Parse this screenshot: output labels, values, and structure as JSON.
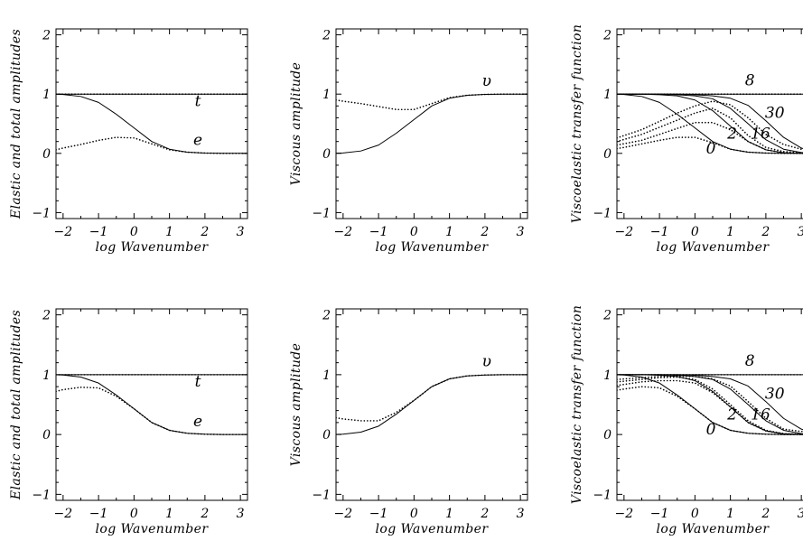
{
  "chart_data": [
    {
      "type": "line",
      "xlabel": "log Wavenumber",
      "ylabel": "Elastic and total amplitudes",
      "xlim": [
        -2.2,
        3.2
      ],
      "ylim": [
        -1.1,
        2.1
      ],
      "xticks": [
        "−2",
        "−1",
        "0",
        "1",
        "2",
        "3"
      ],
      "yticks": [
        "−1",
        "0",
        "1",
        "2"
      ],
      "series": [
        {
          "style": "dotted",
          "x": [
            -2.2,
            3.2
          ],
          "y": [
            1,
            1
          ]
        },
        {
          "style": "solid",
          "x": [
            -2.2,
            3.2
          ],
          "y": [
            1,
            1
          ]
        },
        {
          "style": "solid",
          "x": [
            -2.2,
            -2,
            -1.5,
            -1,
            -0.5,
            0,
            0.5,
            1,
            1.5,
            2,
            2.5,
            3,
            3.2
          ],
          "y": [
            0.998,
            0.994,
            0.96,
            0.86,
            0.66,
            0.43,
            0.2,
            0.07,
            0.02,
            0.005,
            0,
            0,
            0
          ]
        },
        {
          "style": "dotted",
          "x": [
            -2.2,
            -2,
            -1.5,
            -1,
            -0.5,
            0,
            0.5,
            1,
            1.5,
            2,
            2.5,
            3,
            3.2
          ],
          "y": [
            0.06,
            0.09,
            0.15,
            0.22,
            0.27,
            0.26,
            0.16,
            0.06,
            0.02,
            0.005,
            0,
            0,
            0
          ]
        }
      ],
      "annotations": [
        {
          "text": "t",
          "x": 1.8,
          "y": 0.8
        },
        {
          "text": "e",
          "x": 1.8,
          "y": 0.14
        }
      ]
    },
    {
      "type": "line",
      "xlabel": "log Wavenumber",
      "ylabel": "Viscous amplitude",
      "xlim": [
        -2.2,
        3.2
      ],
      "ylim": [
        -1.1,
        2.1
      ],
      "xticks": [
        "−2",
        "−1",
        "0",
        "1",
        "2",
        "3"
      ],
      "yticks": [
        "−1",
        "0",
        "1",
        "2"
      ],
      "series": [
        {
          "style": "solid",
          "x": [
            -2.2,
            -2,
            -1.5,
            -1,
            -0.5,
            0,
            0.5,
            1,
            1.5,
            2,
            2.5,
            3,
            3.2
          ],
          "y": [
            0.002,
            0.006,
            0.04,
            0.14,
            0.34,
            0.57,
            0.8,
            0.93,
            0.98,
            0.995,
            1,
            1,
            1
          ]
        },
        {
          "style": "dotted",
          "x": [
            -2.2,
            -2,
            -1.5,
            -1,
            -0.5,
            0,
            0.5,
            1,
            1.5,
            2,
            2.5,
            3,
            3.2
          ],
          "y": [
            0.9,
            0.88,
            0.84,
            0.79,
            0.74,
            0.74,
            0.84,
            0.94,
            0.98,
            0.995,
            1,
            1,
            1
          ]
        }
      ],
      "annotations": [
        {
          "text": "υ",
          "x": 2.05,
          "y": 1.14
        }
      ]
    },
    {
      "type": "line",
      "xlabel": "log Wavenumber",
      "ylabel": "Viscoelastic transfer function",
      "xlim": [
        -2.2,
        3.2
      ],
      "ylim": [
        -1.1,
        2.1
      ],
      "xticks": [
        "−2",
        "−1",
        "0",
        "1",
        "2",
        "3"
      ],
      "yticks": [
        "−1",
        "0",
        "1",
        "2"
      ],
      "series": [
        {
          "name": "0",
          "style": "solid",
          "x": [
            -2.2,
            -2,
            -1.5,
            -1,
            -0.5,
            0,
            0.5,
            1,
            1.5,
            2,
            2.5,
            3,
            3.2
          ],
          "y": [
            0.998,
            0.994,
            0.96,
            0.86,
            0.66,
            0.43,
            0.2,
            0.07,
            0.02,
            0.005,
            0,
            0,
            0
          ]
        },
        {
          "name": "2",
          "style": "solid",
          "x": [
            -2.2,
            -1.5,
            -1,
            -0.5,
            0,
            0.5,
            1,
            1.5,
            2,
            2.5,
            3,
            3.2
          ],
          "y": [
            1,
            1,
            0.99,
            0.97,
            0.9,
            0.72,
            0.46,
            0.2,
            0.06,
            0.01,
            0,
            0
          ]
        },
        {
          "name": "16",
          "style": "solid",
          "x": [
            -2.2,
            -1,
            -0.5,
            0,
            0.5,
            1,
            1.5,
            2,
            2.5,
            3,
            3.2
          ],
          "y": [
            1,
            1,
            0.99,
            0.97,
            0.92,
            0.76,
            0.5,
            0.23,
            0.07,
            0.015,
            0.005
          ]
        },
        {
          "name": "30",
          "style": "solid",
          "x": [
            -2.2,
            -0.5,
            0,
            0.5,
            1,
            1.5,
            2,
            2.5,
            3,
            3.2
          ],
          "y": [
            1,
            1,
            0.99,
            0.97,
            0.93,
            0.81,
            0.55,
            0.27,
            0.09,
            0.05
          ]
        },
        {
          "name": "8",
          "style": "solid",
          "x": [
            -2.2,
            3.2
          ],
          "y": [
            1,
            1
          ]
        },
        {
          "style": "dotted",
          "x": [
            -2.2,
            -2,
            -1.5,
            -1,
            -0.5,
            0,
            0.5,
            1,
            1.5,
            2,
            2.5,
            3,
            3.2
          ],
          "y": [
            0.08,
            0.1,
            0.16,
            0.22,
            0.27,
            0.27,
            0.18,
            0.07,
            0.02,
            0.005,
            0,
            0,
            0
          ]
        },
        {
          "style": "dotted",
          "x": [
            -2.2,
            -1.5,
            -1,
            -0.5,
            0,
            0.5,
            1,
            1.5,
            2,
            2.5,
            3,
            3.2
          ],
          "y": [
            0.14,
            0.22,
            0.32,
            0.42,
            0.52,
            0.52,
            0.4,
            0.2,
            0.06,
            0.01,
            0,
            0
          ]
        },
        {
          "style": "dotted",
          "x": [
            -2.2,
            -1.5,
            -1,
            -0.5,
            0,
            0.5,
            1,
            1.5,
            2,
            2.5,
            3,
            3.2
          ],
          "y": [
            0.2,
            0.32,
            0.44,
            0.56,
            0.68,
            0.76,
            0.6,
            0.3,
            0.1,
            0.03,
            0.01,
            0.005
          ]
        },
        {
          "style": "dotted",
          "x": [
            -2.2,
            -1.5,
            -1,
            -0.5,
            0,
            0.5,
            1,
            1.5,
            2,
            2.5,
            3,
            3.2
          ],
          "y": [
            0.26,
            0.4,
            0.54,
            0.68,
            0.8,
            0.88,
            0.82,
            0.6,
            0.32,
            0.15,
            0.07,
            0.05
          ]
        },
        {
          "style": "dotted",
          "x": [
            -2.2,
            3.2
          ],
          "y": [
            1,
            1
          ]
        }
      ],
      "annotations": [
        {
          "text": "8",
          "x": 1.55,
          "y": 1.15
        },
        {
          "text": "30",
          "x": 2.25,
          "y": 0.6
        },
        {
          "text": "2",
          "x": 1.05,
          "y": 0.25
        },
        {
          "text": "16",
          "x": 1.85,
          "y": 0.25
        },
        {
          "text": "0",
          "x": 0.45,
          "y": 0.0
        }
      ]
    },
    {
      "type": "line",
      "xlabel": "log Wavenumber",
      "ylabel": "Elastic and total amplitudes",
      "xlim": [
        -2.2,
        3.2
      ],
      "ylim": [
        -1.1,
        2.1
      ],
      "xticks": [
        "−2",
        "−1",
        "0",
        "1",
        "2",
        "3"
      ],
      "yticks": [
        "−1",
        "0",
        "1",
        "2"
      ],
      "series": [
        {
          "style": "dotted",
          "x": [
            -2.2,
            3.2
          ],
          "y": [
            1,
            1
          ]
        },
        {
          "style": "solid",
          "x": [
            -2.2,
            3.2
          ],
          "y": [
            1,
            1
          ]
        },
        {
          "style": "solid",
          "x": [
            -2.2,
            -2,
            -1.5,
            -1,
            -0.5,
            0,
            0.5,
            1,
            1.5,
            2,
            2.5,
            3,
            3.2
          ],
          "y": [
            0.998,
            0.994,
            0.96,
            0.86,
            0.66,
            0.43,
            0.2,
            0.07,
            0.02,
            0.005,
            0,
            0,
            0
          ]
        },
        {
          "style": "dotted",
          "x": [
            -2.2,
            -2,
            -1.5,
            -1,
            -0.5,
            0,
            0.5,
            1,
            1.5,
            2,
            2.5,
            3,
            3.2
          ],
          "y": [
            0.72,
            0.75,
            0.79,
            0.78,
            0.64,
            0.43,
            0.2,
            0.07,
            0.02,
            0.005,
            0,
            0,
            0
          ]
        }
      ],
      "annotations": [
        {
          "text": "t",
          "x": 1.8,
          "y": 0.8
        },
        {
          "text": "e",
          "x": 1.8,
          "y": 0.14
        }
      ]
    },
    {
      "type": "line",
      "xlabel": "log Wavenumber",
      "ylabel": "Viscous amplitude",
      "xlim": [
        -2.2,
        3.2
      ],
      "ylim": [
        -1.1,
        2.1
      ],
      "xticks": [
        "−2",
        "−1",
        "0",
        "1",
        "2",
        "3"
      ],
      "yticks": [
        "−1",
        "0",
        "1",
        "2"
      ],
      "series": [
        {
          "style": "solid",
          "x": [
            -2.2,
            -2,
            -1.5,
            -1,
            -0.5,
            0,
            0.5,
            1,
            1.5,
            2,
            2.5,
            3,
            3.2
          ],
          "y": [
            0.002,
            0.006,
            0.04,
            0.14,
            0.34,
            0.57,
            0.8,
            0.93,
            0.98,
            0.995,
            1,
            1,
            1
          ]
        },
        {
          "style": "dotted",
          "x": [
            -2.2,
            -2,
            -1.5,
            -1,
            -0.5,
            0,
            0.5,
            1,
            1.5,
            2,
            2.5,
            3,
            3.2
          ],
          "y": [
            0.28,
            0.26,
            0.23,
            0.23,
            0.37,
            0.57,
            0.8,
            0.93,
            0.98,
            0.995,
            1,
            1,
            1
          ]
        }
      ],
      "annotations": [
        {
          "text": "υ",
          "x": 2.05,
          "y": 1.14
        }
      ]
    },
    {
      "type": "line",
      "xlabel": "log Wavenumber",
      "ylabel": "Viscoelastic transfer function",
      "xlim": [
        -2.2,
        3.2
      ],
      "ylim": [
        -1.1,
        2.1
      ],
      "xticks": [
        "−2",
        "−1",
        "0",
        "1",
        "2",
        "3"
      ],
      "yticks": [
        "−1",
        "0",
        "1",
        "2"
      ],
      "series": [
        {
          "name": "0",
          "style": "solid",
          "x": [
            -2.2,
            -2,
            -1.5,
            -1,
            -0.5,
            0,
            0.5,
            1,
            1.5,
            2,
            2.5,
            3,
            3.2
          ],
          "y": [
            0.998,
            0.994,
            0.96,
            0.86,
            0.66,
            0.43,
            0.2,
            0.07,
            0.02,
            0.005,
            0,
            0,
            0
          ]
        },
        {
          "name": "2",
          "style": "solid",
          "x": [
            -2.2,
            -1.5,
            -1,
            -0.5,
            0,
            0.5,
            1,
            1.5,
            2,
            2.5,
            3,
            3.2
          ],
          "y": [
            1,
            1,
            0.99,
            0.97,
            0.9,
            0.72,
            0.46,
            0.2,
            0.06,
            0.01,
            0,
            0
          ]
        },
        {
          "name": "16",
          "style": "solid",
          "x": [
            -2.2,
            -1,
            -0.5,
            0,
            0.5,
            1,
            1.5,
            2,
            2.5,
            3,
            3.2
          ],
          "y": [
            1,
            1,
            0.99,
            0.97,
            0.92,
            0.76,
            0.5,
            0.23,
            0.07,
            0.015,
            0.005
          ]
        },
        {
          "name": "30",
          "style": "solid",
          "x": [
            -2.2,
            -0.5,
            0,
            0.5,
            1,
            1.5,
            2,
            2.5,
            3,
            3.2
          ],
          "y": [
            1,
            1,
            0.99,
            0.97,
            0.93,
            0.81,
            0.55,
            0.27,
            0.09,
            0.05
          ]
        },
        {
          "name": "8",
          "style": "solid",
          "x": [
            -2.2,
            3.2
          ],
          "y": [
            1,
            1
          ]
        },
        {
          "style": "dotted",
          "x": [
            -2.2,
            -2,
            -1.5,
            -1,
            -0.5,
            0,
            0.5,
            1,
            1.5,
            2,
            2.5,
            3,
            3.2
          ],
          "y": [
            0.74,
            0.76,
            0.8,
            0.78,
            0.64,
            0.43,
            0.2,
            0.07,
            0.02,
            0.005,
            0,
            0,
            0
          ]
        },
        {
          "style": "dotted",
          "x": [
            -2.2,
            -1.5,
            -1,
            -0.5,
            0,
            0.5,
            1,
            1.5,
            2,
            2.5,
            3,
            3.2
          ],
          "y": [
            0.82,
            0.88,
            0.9,
            0.9,
            0.86,
            0.7,
            0.46,
            0.2,
            0.06,
            0.01,
            0,
            0
          ]
        },
        {
          "style": "dotted",
          "x": [
            -2.2,
            -1.5,
            -1,
            -0.5,
            0,
            0.5,
            1,
            1.5,
            2,
            2.5,
            3,
            3.2
          ],
          "y": [
            0.88,
            0.92,
            0.95,
            0.96,
            0.92,
            0.76,
            0.5,
            0.23,
            0.07,
            0.015,
            0.005,
            0.005
          ]
        },
        {
          "style": "dotted",
          "x": [
            -2.2,
            -1.5,
            -1,
            -0.5,
            0,
            0.5,
            1,
            1.5,
            2,
            2.5,
            3,
            3.2
          ],
          "y": [
            0.92,
            0.95,
            0.97,
            0.98,
            0.97,
            0.93,
            0.81,
            0.55,
            0.27,
            0.09,
            0.05,
            0.05
          ]
        },
        {
          "style": "dotted",
          "x": [
            -2.2,
            3.2
          ],
          "y": [
            1,
            1
          ]
        }
      ],
      "annotations": [
        {
          "text": "8",
          "x": 1.55,
          "y": 1.15
        },
        {
          "text": "30",
          "x": 2.25,
          "y": 0.6
        },
        {
          "text": "2",
          "x": 1.05,
          "y": 0.25
        },
        {
          "text": "16",
          "x": 1.85,
          "y": 0.25
        },
        {
          "text": "0",
          "x": 0.45,
          "y": 0.0
        }
      ]
    }
  ]
}
